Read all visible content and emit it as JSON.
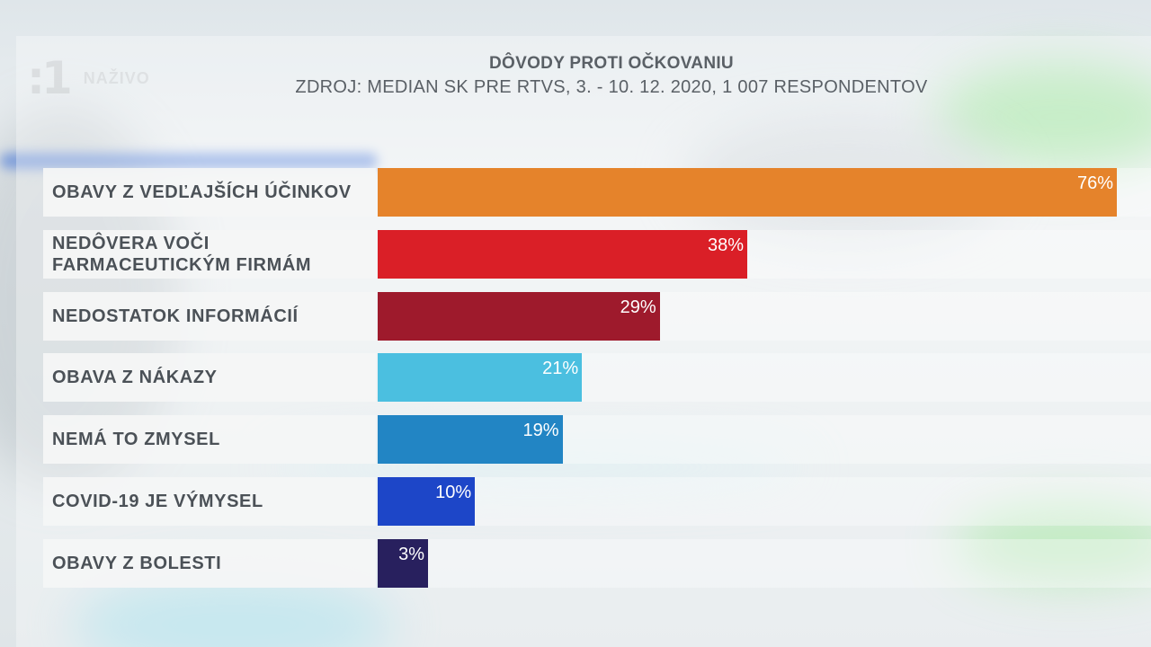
{
  "chart_data": {
    "type": "bar",
    "orientation": "horizontal",
    "title": "DÔVODY PROTI OČKOVANIU",
    "subtitle": "ZDROJ: MEDIAN SK PRE RTVS, 3. - 10. 12. 2020, 1 007 RESPONDENTOV",
    "categories": [
      "OBAVY Z VEDĽAJŠÍCH ÚČINKOV",
      "NEDÔVERA VOČI\nFARMACEUTICKÝM FIRMÁM",
      "NEDOSTATOK INFORMÁCIÍ",
      "OBAVA Z NÁKAZY",
      "NEMÁ TO ZMYSEL",
      "COVID-19 JE VÝMYSEL",
      "OBAVY Z BOLESTI"
    ],
    "values": [
      76,
      38,
      29,
      21,
      19,
      10,
      3
    ],
    "value_labels": [
      "76%",
      "38%",
      "29%",
      "21%",
      "19%",
      "10%",
      "3%"
    ],
    "colors": [
      "#e5832b",
      "#da1f27",
      "#9e1a2c",
      "#4bbfe0",
      "#2285c4",
      "#1d46c8",
      "#28205e"
    ],
    "xlim": [
      0,
      80
    ],
    "grid": false,
    "legend": "none"
  },
  "overlay": {
    "logo_mark": ":1",
    "logo_text": "NAŽIVO"
  }
}
